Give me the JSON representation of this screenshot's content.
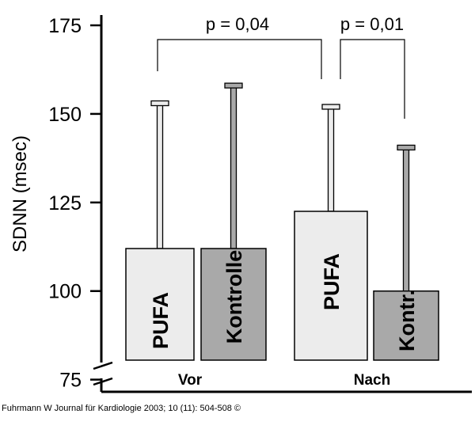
{
  "chart_data": {
    "type": "bar",
    "ylabel": "SDNN (msec)",
    "yticks": [
      175,
      150,
      125,
      100,
      75
    ],
    "ylim": [
      75,
      175
    ],
    "axis_break": true,
    "groups": [
      "Vor",
      "Nach"
    ],
    "bars": [
      {
        "group": "Vor",
        "label": "PUFA",
        "value": 112,
        "error_upper": 153,
        "color": "#ececec"
      },
      {
        "group": "Vor",
        "label": "Kontrolle",
        "value": 112,
        "error_upper": 158,
        "color": "#a9a9a9"
      },
      {
        "group": "Nach",
        "label": "PUFA",
        "value": 122.5,
        "error_upper": 152,
        "color": "#ececec"
      },
      {
        "group": "Nach",
        "label": "Kontr.",
        "value": 100,
        "error_upper": 140.5,
        "color": "#a9a9a9"
      }
    ],
    "comparisons": [
      {
        "from_bar": 0,
        "to_bar": 2,
        "label": "p = 0,04"
      },
      {
        "from_bar": 2,
        "to_bar": 3,
        "label": "p = 0,01"
      }
    ]
  },
  "caption": "Fuhrmann W Journal für Kardiologie 2003; 10 (11): 504-508 ©"
}
